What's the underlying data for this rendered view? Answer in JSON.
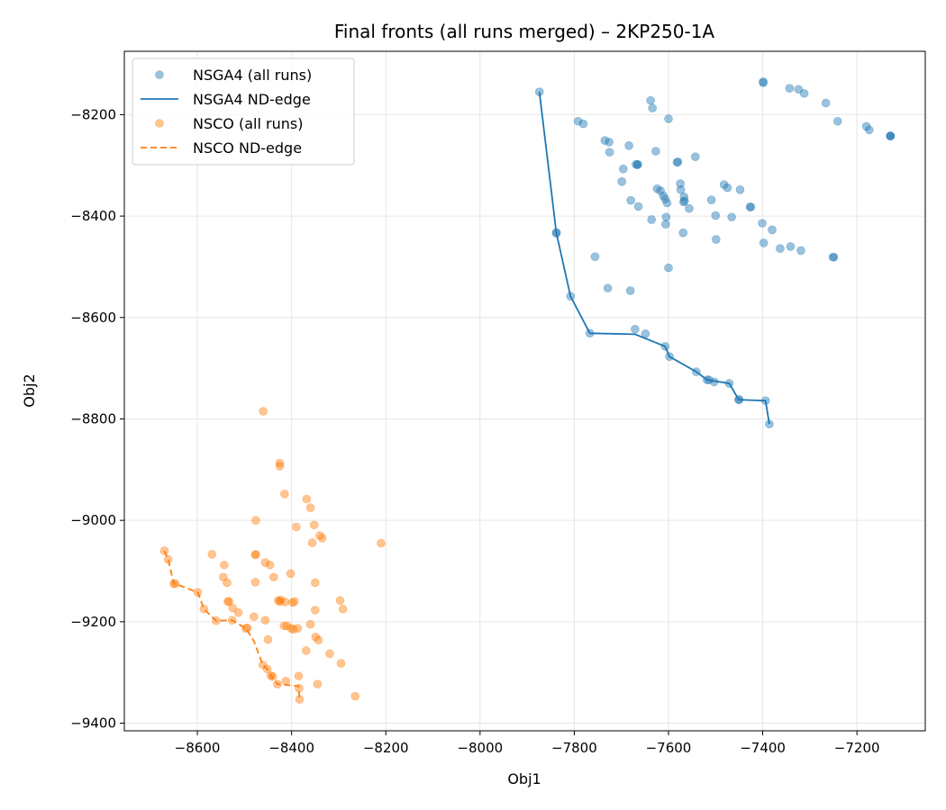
{
  "chart_data": {
    "type": "scatter",
    "title": "Final fronts (all runs merged) – 2KP250-1A",
    "xlabel": "Obj1",
    "ylabel": "Obj2",
    "xlim": [
      -8755,
      -7055
    ],
    "ylim": [
      -9415,
      -8075
    ],
    "xticks": [
      -8600,
      -8400,
      -8200,
      -8000,
      -7800,
      -7600,
      -7400,
      -7200
    ],
    "yticks": [
      -8200,
      -8400,
      -8600,
      -8800,
      -9000,
      -9200,
      -9400
    ],
    "grid": true,
    "legend_position": "upper left",
    "series": [
      {
        "name": "NSGA4 (all runs)",
        "kind": "scatter",
        "color": "#1f77b4",
        "points": [
          [
            -7874,
            -8155
          ],
          [
            -7399,
            -8135
          ],
          [
            -7399,
            -8137
          ],
          [
            -7343,
            -8148
          ],
          [
            -7324,
            -8150
          ],
          [
            -7312,
            -8158
          ],
          [
            -7266,
            -8177
          ],
          [
            -7241,
            -8213
          ],
          [
            -7180,
            -8223
          ],
          [
            -7174,
            -8230
          ],
          [
            -7129,
            -8242
          ],
          [
            -7129,
            -8242
          ],
          [
            -7129,
            -8242
          ],
          [
            -7792,
            -8213
          ],
          [
            -7781,
            -8218
          ],
          [
            -7638,
            -8172
          ],
          [
            -7634,
            -8187
          ],
          [
            -7600,
            -8208
          ],
          [
            -7735,
            -8251
          ],
          [
            -7726,
            -8254
          ],
          [
            -7725,
            -8274
          ],
          [
            -7684,
            -8261
          ],
          [
            -7669,
            -8298
          ],
          [
            -7666,
            -8299
          ],
          [
            -7665,
            -8298
          ],
          [
            -7627,
            -8272
          ],
          [
            -7582,
            -8294
          ],
          [
            -7580,
            -8293
          ],
          [
            -7543,
            -8283
          ],
          [
            -7696,
            -8307
          ],
          [
            -7699,
            -8332
          ],
          [
            -7680,
            -8369
          ],
          [
            -7664,
            -8381
          ],
          [
            -7624,
            -8346
          ],
          [
            -7617,
            -8350
          ],
          [
            -7611,
            -8360
          ],
          [
            -7607,
            -8366
          ],
          [
            -7603,
            -8374
          ],
          [
            -7575,
            -8336
          ],
          [
            -7574,
            -8348
          ],
          [
            -7567,
            -8362
          ],
          [
            -7568,
            -8372
          ],
          [
            -7566,
            -8370
          ],
          [
            -7556,
            -8385
          ],
          [
            -7509,
            -8368
          ],
          [
            -7500,
            -8399
          ],
          [
            -7482,
            -8338
          ],
          [
            -7475,
            -8344
          ],
          [
            -7466,
            -8402
          ],
          [
            -7448,
            -8348
          ],
          [
            -7427,
            -8382
          ],
          [
            -7425,
            -8382
          ],
          [
            -7636,
            -8407
          ],
          [
            -7605,
            -8402
          ],
          [
            -7606,
            -8416
          ],
          [
            -7569,
            -8433
          ],
          [
            -7401,
            -8414
          ],
          [
            -7398,
            -8453
          ],
          [
            -7380,
            -8427
          ],
          [
            -7363,
            -8464
          ],
          [
            -7341,
            -8460
          ],
          [
            -7319,
            -8468
          ],
          [
            -7249,
            -8481
          ],
          [
            -7251,
            -8481
          ],
          [
            -7499,
            -8446
          ],
          [
            -7600,
            -8502
          ],
          [
            -7756,
            -8480
          ],
          [
            -7729,
            -8542
          ],
          [
            -7681,
            -8547
          ],
          [
            -7808,
            -8558
          ],
          [
            -7767,
            -8631
          ],
          [
            -7671,
            -8623
          ],
          [
            -7649,
            -8632
          ],
          [
            -7607,
            -8657
          ],
          [
            -7598,
            -8677
          ],
          [
            -7541,
            -8707
          ],
          [
            -7518,
            -8723
          ],
          [
            -7514,
            -8723
          ],
          [
            -7503,
            -8727
          ],
          [
            -7471,
            -8730
          ],
          [
            -7451,
            -8762
          ],
          [
            -7450,
            -8762
          ],
          [
            -7394,
            -8764
          ],
          [
            -7386,
            -8810
          ],
          [
            -7838,
            -8432
          ],
          [
            -7838,
            -8434
          ]
        ]
      },
      {
        "name": "NSGA4 ND-edge",
        "kind": "line",
        "dash": "",
        "color": "#1f77b4",
        "points": [
          [
            -7874,
            -8155
          ],
          [
            -7838,
            -8433
          ],
          [
            -7808,
            -8558
          ],
          [
            -7767,
            -8631
          ],
          [
            -7671,
            -8633
          ],
          [
            -7607,
            -8657
          ],
          [
            -7598,
            -8677
          ],
          [
            -7541,
            -8707
          ],
          [
            -7518,
            -8723
          ],
          [
            -7471,
            -8730
          ],
          [
            -7451,
            -8762
          ],
          [
            -7394,
            -8764
          ],
          [
            -7386,
            -8810
          ]
        ]
      },
      {
        "name": "NSCO (all runs)",
        "kind": "scatter",
        "color": "#ff7f0e",
        "points": [
          [
            -8460,
            -8785
          ],
          [
            -8425,
            -8887
          ],
          [
            -8425,
            -8893
          ],
          [
            -8415,
            -8948
          ],
          [
            -8368,
            -8958
          ],
          [
            -8360,
            -8975
          ],
          [
            -8476,
            -9000
          ],
          [
            -8390,
            -9013
          ],
          [
            -8352,
            -9009
          ],
          [
            -8340,
            -9030
          ],
          [
            -8335,
            -9035
          ],
          [
            -8356,
            -9044
          ],
          [
            -8210,
            -9045
          ],
          [
            -8670,
            -9060
          ],
          [
            -8662,
            -9077
          ],
          [
            -8650,
            -9125
          ],
          [
            -8647,
            -9125
          ],
          [
            -8599,
            -9142
          ],
          [
            -8569,
            -9067
          ],
          [
            -8543,
            -9088
          ],
          [
            -8545,
            -9112
          ],
          [
            -8537,
            -9123
          ],
          [
            -8535,
            -9160
          ],
          [
            -8533,
            -9160
          ],
          [
            -8525,
            -9173
          ],
          [
            -8513,
            -9182
          ],
          [
            -8476,
            -9067
          ],
          [
            -8477,
            -9068
          ],
          [
            -8477,
            -9122
          ],
          [
            -8456,
            -9083
          ],
          [
            -8446,
            -9088
          ],
          [
            -8438,
            -9112
          ],
          [
            -8428,
            -9158
          ],
          [
            -8425,
            -9160
          ],
          [
            -8423,
            -9157
          ],
          [
            -8414,
            -9161
          ],
          [
            -8402,
            -9105
          ],
          [
            -8398,
            -9162
          ],
          [
            -8394,
            -9160
          ],
          [
            -8350,
            -9123
          ],
          [
            -8586,
            -9175
          ],
          [
            -8560,
            -9198
          ],
          [
            -8526,
            -9197
          ],
          [
            -8497,
            -9213
          ],
          [
            -8494,
            -9212
          ],
          [
            -8480,
            -9190
          ],
          [
            -8456,
            -9197
          ],
          [
            -8450,
            -9235
          ],
          [
            -8416,
            -9208
          ],
          [
            -8410,
            -9208
          ],
          [
            -8401,
            -9213
          ],
          [
            -8396,
            -9215
          ],
          [
            -8387,
            -9213
          ],
          [
            -8360,
            -9205
          ],
          [
            -8350,
            -9177
          ],
          [
            -8349,
            -9230
          ],
          [
            -8343,
            -9236
          ],
          [
            -8297,
            -9158
          ],
          [
            -8291,
            -9175
          ],
          [
            -8319,
            -9263
          ],
          [
            -8295,
            -9282
          ],
          [
            -8369,
            -9257
          ],
          [
            -8461,
            -9285
          ],
          [
            -8452,
            -9293
          ],
          [
            -8444,
            -9306
          ],
          [
            -8440,
            -9308
          ],
          [
            -8430,
            -9323
          ],
          [
            -8412,
            -9317
          ],
          [
            -8385,
            -9307
          ],
          [
            -8384,
            -9331
          ],
          [
            -8383,
            -9353
          ],
          [
            -8345,
            -9323
          ],
          [
            -8265,
            -9347
          ]
        ]
      },
      {
        "name": "NSCO ND-edge",
        "kind": "line",
        "dash": "7,4",
        "color": "#ff7f0e",
        "points": [
          [
            -8670,
            -9060
          ],
          [
            -8662,
            -9077
          ],
          [
            -8650,
            -9125
          ],
          [
            -8647,
            -9125
          ],
          [
            -8599,
            -9142
          ],
          [
            -8586,
            -9175
          ],
          [
            -8560,
            -9198
          ],
          [
            -8526,
            -9197
          ],
          [
            -8497,
            -9213
          ],
          [
            -8480,
            -9238
          ],
          [
            -8461,
            -9285
          ],
          [
            -8452,
            -9293
          ],
          [
            -8444,
            -9306
          ],
          [
            -8430,
            -9323
          ],
          [
            -8385,
            -9327
          ],
          [
            -8383,
            -9353
          ]
        ]
      }
    ]
  }
}
